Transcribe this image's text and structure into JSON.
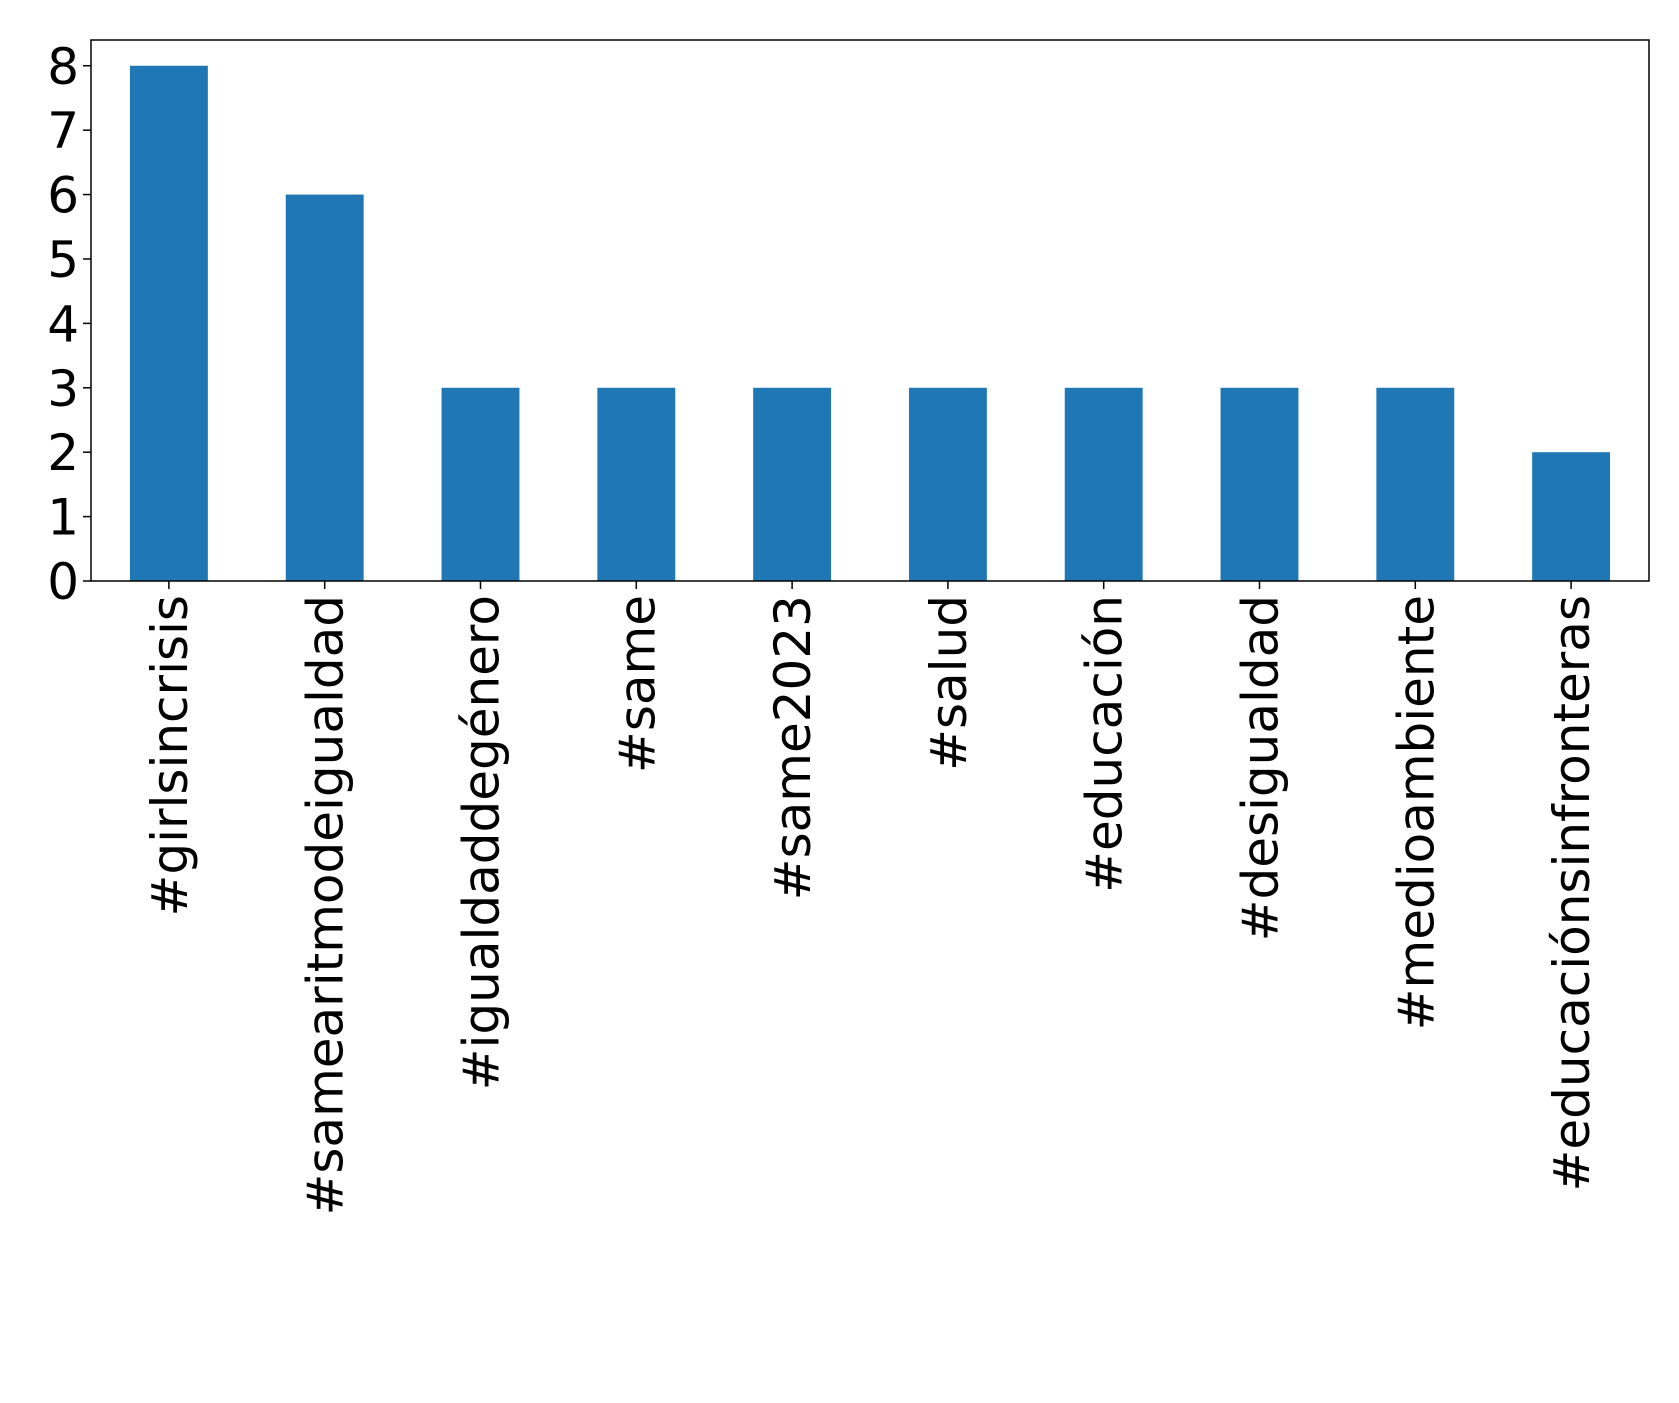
{
  "chart_data": {
    "type": "bar",
    "categories": [
      "#girlsincrisis",
      "#samearitmodeigualdad",
      "#igualdaddegénero",
      "#same",
      "#same2023",
      "#salud",
      "#educación",
      "#desigualdad",
      "#medioambiente",
      "#educaciónsinfronteras"
    ],
    "values": [
      8,
      6,
      3,
      3,
      3,
      3,
      3,
      3,
      3,
      2
    ],
    "color": "#1f77b4",
    "ylim": [
      0,
      8.4
    ],
    "yticks": [
      0,
      1,
      2,
      3,
      4,
      5,
      6,
      7,
      8
    ],
    "grid": false
  }
}
